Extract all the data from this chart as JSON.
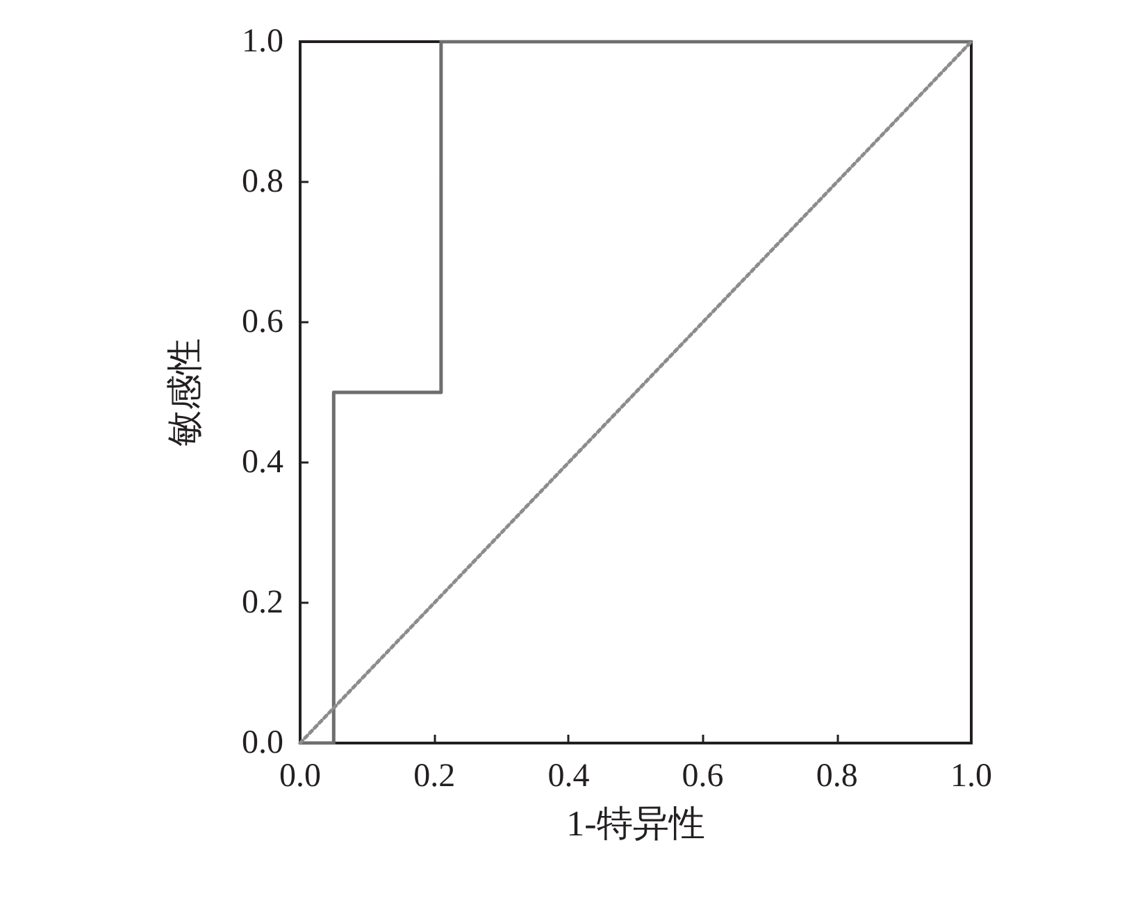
{
  "chart_data": {
    "type": "line",
    "xlabel": "1-特异性",
    "ylabel": "敏感性",
    "xlim": [
      0,
      1
    ],
    "ylim": [
      0,
      1
    ],
    "xticks": [
      {
        "value": 0,
        "label": "0.0"
      },
      {
        "value": 0.2,
        "label": "0.2"
      },
      {
        "value": 0.4,
        "label": "0.4"
      },
      {
        "value": 0.6,
        "label": "0.6"
      },
      {
        "value": 0.8,
        "label": "0.8"
      },
      {
        "value": 1,
        "label": "1.0"
      }
    ],
    "yticks": [
      {
        "value": 0,
        "label": "0.0"
      },
      {
        "value": 0.2,
        "label": "0.2"
      },
      {
        "value": 0.4,
        "label": "0.4"
      },
      {
        "value": 0.6,
        "label": "0.6"
      },
      {
        "value": 0.8,
        "label": "0.8"
      },
      {
        "value": 1,
        "label": "1.0"
      }
    ],
    "grid": false,
    "marker": "none",
    "series": [
      {
        "color": "#6e6e6e",
        "line_style": "solid",
        "x": [
          0,
          0.05,
          0.05,
          0.21,
          0.21,
          1
        ],
        "values": [
          0,
          0,
          0.5,
          0.5,
          1,
          1
        ]
      },
      {
        "color": "#8c8c8c",
        "line_style": "dotted",
        "x": [
          0,
          1
        ],
        "values": [
          0,
          1
        ]
      }
    ]
  }
}
